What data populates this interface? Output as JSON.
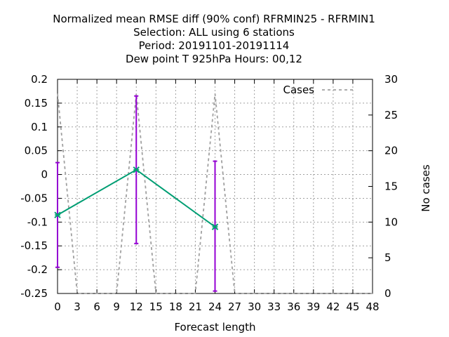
{
  "chart_data": {
    "type": "line",
    "title_lines": [
      "Normalized mean RMSE diff (90% conf) RFRMIN25 - RFRMIN1",
      "Selection: ALL using     6 stations",
      "Period: 20191101-20191114",
      "Dew point T 925hPa   Hours:  00,12"
    ],
    "xlabel": "Forecast length",
    "ylabel_right": "No cases",
    "xlim": [
      0,
      48
    ],
    "ylim": [
      -0.25,
      0.2
    ],
    "y2lim": [
      0,
      30
    ],
    "x_ticks": [
      "0",
      "3",
      "6",
      "9",
      "12",
      "15",
      "18",
      "21",
      "24",
      "27",
      "30",
      "33",
      "36",
      "39",
      "42",
      "45",
      "48"
    ],
    "y_ticks": [
      "0.2",
      "0.15",
      "0.1",
      "0.05",
      "0",
      "-0.05",
      "-0.1",
      "-0.15",
      "-0.2",
      "-0.25"
    ],
    "y2_ticks": [
      "30",
      "25",
      "20",
      "15",
      "10",
      "5",
      "0"
    ],
    "grid": true,
    "legend_position": "top-right",
    "series": [
      {
        "name": "",
        "axis": "left",
        "color": "#009e73",
        "x": [
          0,
          12,
          24
        ],
        "y": [
          -0.085,
          0.01,
          -0.11
        ],
        "err_low": [
          -0.195,
          -0.145,
          -0.245
        ],
        "err_high": [
          0.025,
          0.165,
          0.028
        ],
        "err_color": "#9400d3"
      },
      {
        "name": "Cases",
        "axis": "right",
        "color": "#a0a0a0",
        "x": [
          0,
          3,
          9,
          12,
          15,
          21,
          24,
          27,
          48
        ],
        "y": [
          28,
          0,
          0,
          28,
          0,
          0,
          28,
          0,
          0
        ]
      }
    ]
  }
}
